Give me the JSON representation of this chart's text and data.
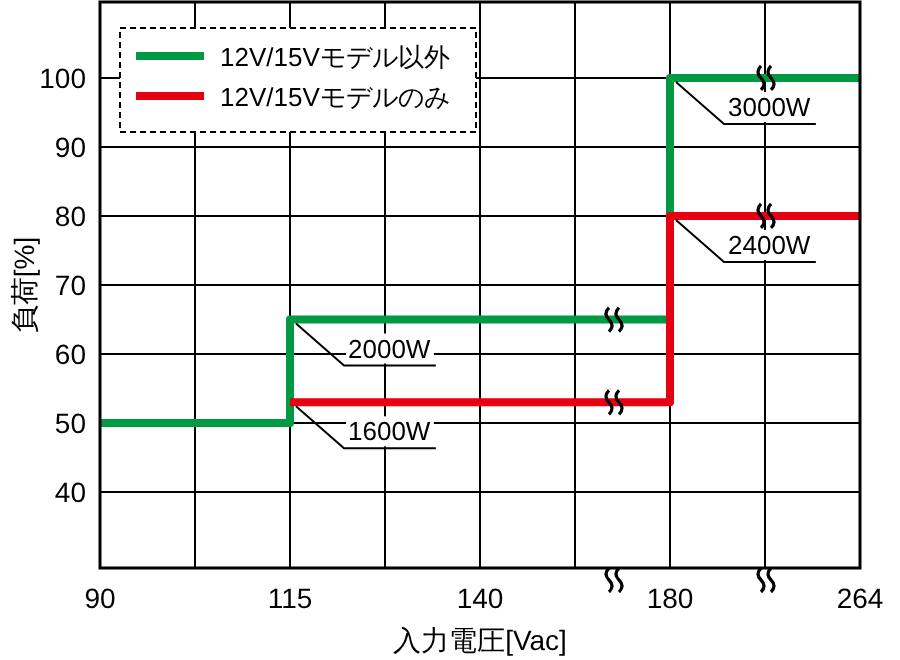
{
  "chart_data": {
    "type": "step",
    "xlabel": "入力電圧[Vac]",
    "ylabel": "負荷[%]",
    "categories": [
      "90",
      "115",
      "140",
      "180",
      "264"
    ],
    "ylim": [
      29,
      111
    ],
    "yticks": [
      40,
      50,
      60,
      70,
      80,
      90,
      100
    ],
    "grid": true,
    "legend": "top left",
    "series": [
      {
        "name": "12V/15Vモデル以外",
        "color": "#009a44",
        "values": [
          50,
          65,
          65,
          100,
          100
        ]
      },
      {
        "name": "12V/15Vモデルのみ",
        "color": "#e60012",
        "values": [
          null,
          53,
          53,
          80,
          80
        ]
      }
    ],
    "annotations": [
      {
        "text": "3000W",
        "x": "180",
        "y": 100
      },
      {
        "text": "2400W",
        "x": "180",
        "y": 80
      },
      {
        "text": "2000W",
        "x": "115",
        "y": 65
      },
      {
        "text": "1600W",
        "x": "115",
        "y": 53
      }
    ]
  }
}
